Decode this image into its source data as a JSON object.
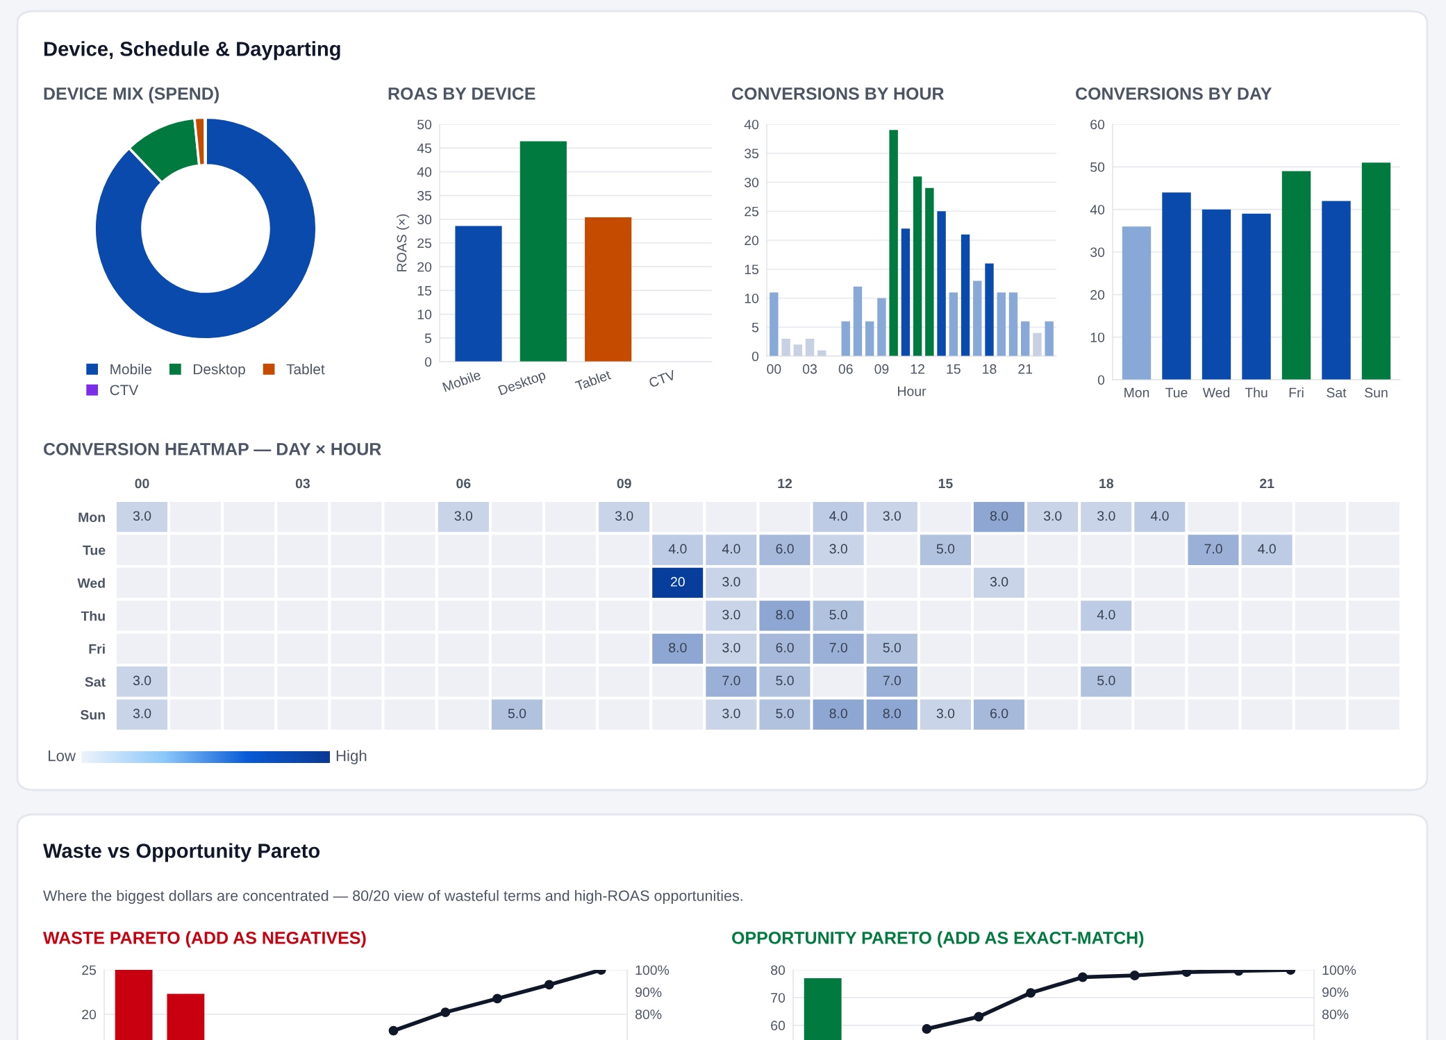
{
  "chart_data": [
    {
      "type": "donut",
      "title": "DEVICE MIX (SPEND)",
      "annotations": [
        "Device, Schedule & Dayparting"
      ],
      "categories": [
        "Mobile",
        "Desktop",
        "Tablet",
        "CTV"
      ],
      "values": [
        87.9,
        10.5,
        1.5,
        0.1
      ],
      "colors": [
        "#0b4aad",
        "#007a3e",
        "#c54b00",
        "#7c2ee6"
      ],
      "legend": "bottom"
    },
    {
      "type": "bar",
      "title": "ROAS BY DEVICE",
      "ylabel": "ROAS (×)",
      "categories": [
        "Mobile",
        "Desktop",
        "Tablet",
        "CTV"
      ],
      "values": [
        28.6,
        46.4,
        30.4,
        null
      ],
      "colors": [
        "#0b4aad",
        "#007a3e",
        "#c54b00",
        null
      ],
      "ylim": [
        0,
        50
      ],
      "yticks": [
        0,
        5,
        10,
        15,
        20,
        25,
        30,
        35,
        40,
        45,
        50
      ],
      "grid": "y"
    },
    {
      "type": "bar",
      "title": "CONVERSIONS BY HOUR",
      "xlabel": "Hour",
      "categories": [
        "00",
        null,
        null,
        "03",
        null,
        null,
        "06",
        null,
        null,
        "09",
        null,
        null,
        "12",
        null,
        null,
        "15",
        null,
        null,
        "18",
        null,
        null,
        "21",
        null,
        null
      ],
      "values": [
        11,
        3,
        2,
        3,
        1,
        0,
        6,
        12,
        6,
        10,
        39,
        22,
        31,
        29,
        25,
        11,
        21,
        13,
        16,
        11,
        11,
        6,
        4,
        6
      ],
      "colors": [
        "#88a8d8",
        "#c8d1e3",
        "#c8d1e3",
        "#c8d1e3",
        "#c8d1e3",
        "#c8d1e3",
        "#88a8d8",
        "#88a8d8",
        "#88a8d8",
        "#88a8d8",
        "#007a3e",
        "#0b4aad",
        "#007a3e",
        "#007a3e",
        "#0b4aad",
        "#88a8d8",
        "#0b4aad",
        "#88a8d8",
        "#0b4aad",
        "#88a8d8",
        "#88a8d8",
        "#88a8d8",
        "#c8d1e3",
        "#88a8d8"
      ],
      "ylim": [
        0,
        40
      ],
      "yticks": [
        0,
        5,
        10,
        15,
        20,
        25,
        30,
        35,
        40
      ],
      "grid": "y"
    },
    {
      "type": "bar",
      "title": "CONVERSIONS BY DAY",
      "categories": [
        "Mon",
        "Tue",
        "Wed",
        "Thu",
        "Fri",
        "Sat",
        "Sun"
      ],
      "values": [
        36,
        44,
        40,
        39,
        49,
        42,
        51
      ],
      "colors": [
        "#88a8d8",
        "#0b4aad",
        "#0b4aad",
        "#0b4aad",
        "#007a3e",
        "#0b4aad",
        "#007a3e"
      ],
      "ylim": [
        0,
        60
      ],
      "yticks": [
        0,
        10,
        20,
        30,
        40,
        50,
        60
      ],
      "grid": "y"
    },
    {
      "type": "heatmap",
      "title": "CONVERSION HEATMAP — DAY × HOUR",
      "categories": [
        "00",
        null,
        null,
        "03",
        null,
        null,
        "06",
        null,
        null,
        "09",
        null,
        null,
        "12",
        null,
        null,
        "15",
        null,
        null,
        "18",
        null,
        null,
        "21",
        null,
        null
      ],
      "y_categories": [
        "Mon",
        "Tue",
        "Wed",
        "Thu",
        "Fri",
        "Sat",
        "Sun"
      ],
      "cells": [
        [
          3,
          null,
          null,
          null,
          null,
          null,
          3,
          null,
          null,
          3,
          null,
          null,
          null,
          4,
          3,
          null,
          8,
          3,
          3,
          4,
          null,
          null,
          null,
          null
        ],
        [
          null,
          null,
          null,
          null,
          null,
          null,
          null,
          null,
          null,
          null,
          4,
          4,
          6,
          3,
          null,
          5,
          null,
          null,
          null,
          null,
          7,
          4,
          null,
          null
        ],
        [
          null,
          null,
          null,
          null,
          null,
          null,
          null,
          null,
          null,
          null,
          20,
          3,
          null,
          null,
          null,
          null,
          3,
          null,
          null,
          null,
          null,
          null,
          null,
          null
        ],
        [
          null,
          null,
          null,
          null,
          null,
          null,
          null,
          null,
          null,
          null,
          null,
          3,
          8,
          5,
          null,
          null,
          null,
          null,
          4,
          null,
          null,
          null,
          null,
          null
        ],
        [
          null,
          null,
          null,
          null,
          null,
          null,
          null,
          null,
          null,
          null,
          8,
          3,
          6,
          7,
          5,
          null,
          null,
          null,
          null,
          null,
          null,
          null,
          null,
          null
        ],
        [
          3,
          null,
          null,
          null,
          null,
          null,
          null,
          null,
          null,
          null,
          null,
          7,
          5,
          null,
          7,
          null,
          null,
          null,
          5,
          null,
          null,
          null,
          null,
          null
        ],
        [
          3,
          null,
          null,
          null,
          null,
          null,
          null,
          5,
          null,
          null,
          null,
          3,
          5,
          8,
          8,
          3,
          6,
          null,
          null,
          null,
          null,
          null,
          null,
          null
        ]
      ],
      "cell_labels": [
        [
          "3.0",
          null,
          null,
          null,
          null,
          null,
          "3.0",
          null,
          null,
          "3.0",
          null,
          null,
          null,
          "4.0",
          "3.0",
          null,
          "8.0",
          "3.0",
          "3.0",
          "4.0",
          null,
          null,
          null,
          null
        ],
        [
          null,
          null,
          null,
          null,
          null,
          null,
          null,
          null,
          null,
          null,
          "4.0",
          "4.0",
          "6.0",
          "3.0",
          null,
          "5.0",
          null,
          null,
          null,
          null,
          "7.0",
          "4.0",
          null,
          null
        ],
        [
          null,
          null,
          null,
          null,
          null,
          null,
          null,
          null,
          null,
          null,
          "20",
          "3.0",
          null,
          null,
          null,
          null,
          "3.0",
          null,
          null,
          null,
          null,
          null,
          null,
          null
        ],
        [
          null,
          null,
          null,
          null,
          null,
          null,
          null,
          null,
          null,
          null,
          null,
          "3.0",
          "8.0",
          "5.0",
          null,
          null,
          null,
          null,
          "4.0",
          null,
          null,
          null,
          null,
          null
        ],
        [
          null,
          null,
          null,
          null,
          null,
          null,
          null,
          null,
          null,
          null,
          "8.0",
          "3.0",
          "6.0",
          "7.0",
          "5.0",
          null,
          null,
          null,
          null,
          null,
          null,
          null,
          null,
          null
        ],
        [
          "3.0",
          null,
          null,
          null,
          null,
          null,
          null,
          null,
          null,
          null,
          null,
          "7.0",
          "5.0",
          null,
          "7.0",
          null,
          null,
          null,
          "5.0",
          null,
          null,
          null,
          null,
          null
        ],
        [
          "3.0",
          null,
          null,
          null,
          null,
          null,
          null,
          "5.0",
          null,
          null,
          null,
          "3.0",
          "5.0",
          "8.0",
          "8.0",
          "3.0",
          "6.0",
          null,
          null,
          null,
          null,
          null,
          null,
          null
        ]
      ],
      "annotations": [
        "Low",
        "High"
      ]
    },
    {
      "type": "bar",
      "title": "WASTE PARETO (ADD AS NEGATIVES)",
      "annotations": [
        "Waste vs Opportunity Pareto",
        "Where the biggest dollars are concentrated — 80/20 view of wasteful terms and high-ROAS opportunities."
      ],
      "categories": [
        null,
        null,
        null,
        null,
        null,
        null,
        null,
        null,
        null,
        null
      ],
      "series": [
        {
          "type": "bar",
          "color": "#c8000f",
          "values": [
            25,
            22.3,
            null,
            null,
            null,
            null,
            null,
            null,
            null,
            null
          ]
        },
        {
          "type": "line",
          "axis": "y2",
          "color": "#0f1729",
          "values": [
            null,
            null,
            null,
            null,
            null,
            72.5,
            80.8,
            87,
            93.3,
            100
          ]
        }
      ],
      "ylim": [
        17.1,
        25
      ],
      "yticks": [
        20,
        25
      ],
      "y2lim": [
        68.3,
        100
      ],
      "y2ticks": [
        {
          "value": 80,
          "label": "80%"
        },
        {
          "value": 90,
          "label": "90%"
        },
        {
          "value": 100,
          "label": "100%"
        }
      ],
      "grid": "y",
      "marker": "circle"
    },
    {
      "type": "bar",
      "title": "OPPORTUNITY PARETO (ADD AS EXACT-MATCH)",
      "categories": [
        null,
        null,
        null,
        null,
        null,
        null,
        null,
        null,
        null,
        null
      ],
      "series": [
        {
          "type": "bar",
          "color": "#007a3e",
          "values": [
            77,
            null,
            null,
            null,
            null,
            null,
            null,
            null,
            null,
            null
          ]
        },
        {
          "type": "line",
          "axis": "y2",
          "color": "#0f1729",
          "values": [
            null,
            null,
            73.3,
            78.8,
            89.6,
            96.7,
            97.5,
            99,
            99.5,
            100
          ]
        }
      ],
      "ylim": [
        54.7,
        80
      ],
      "yticks": [
        60,
        70,
        80
      ],
      "y2lim": [
        68.3,
        100
      ],
      "y2ticks": [
        {
          "value": 80,
          "label": "80%"
        },
        {
          "value": 90,
          "label": "90%"
        },
        {
          "value": 100,
          "label": "100%"
        }
      ],
      "grid": "y",
      "marker": "circle"
    }
  ]
}
